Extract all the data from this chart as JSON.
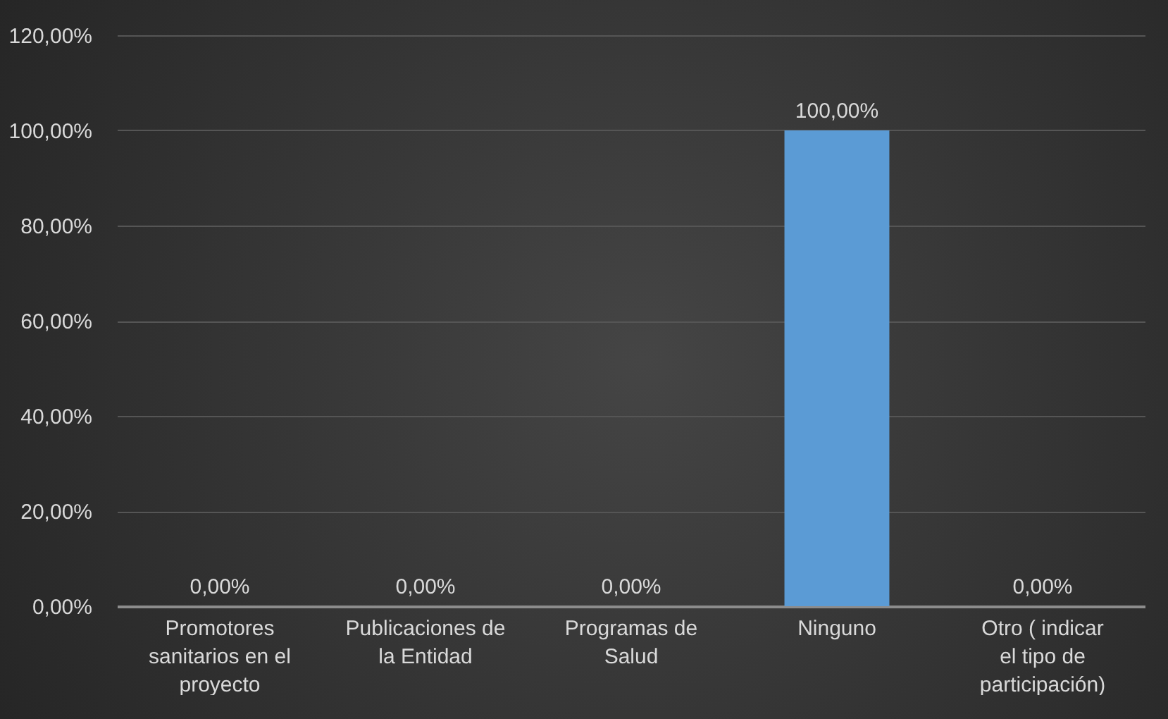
{
  "chart_data": {
    "type": "bar",
    "categories": [
      "Promotores sanitarios en el proyecto",
      "Publicaciones de la Entidad",
      "Programas de Salud",
      "Ninguno",
      "Otro ( indicar el tipo de participación)"
    ],
    "values": [
      0,
      0,
      0,
      100,
      0
    ],
    "color": "#5b9bd5",
    "value_labels": [
      "0,00%",
      "0,00%",
      "0,00%",
      "100,00%",
      "0,00%"
    ],
    "ylim": [
      0,
      120
    ],
    "yticks": [
      {
        "value": 0,
        "label": "0,00%"
      },
      {
        "value": 20,
        "label": "20,00%"
      },
      {
        "value": 40,
        "label": "40,00%"
      },
      {
        "value": 60,
        "label": "60,00%"
      },
      {
        "value": 80,
        "label": "80,00%"
      },
      {
        "value": 100,
        "label": "100,00%"
      },
      {
        "value": 120,
        "label": "120,00%"
      }
    ],
    "grid": "y"
  }
}
